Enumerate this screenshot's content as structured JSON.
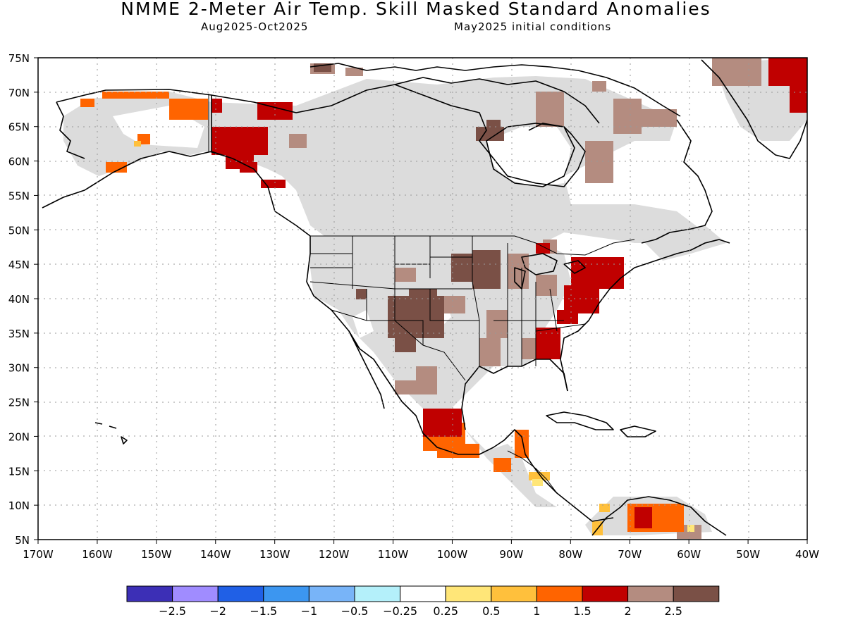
{
  "header": {
    "title": "NMME 2-Meter Air Temp. Skill Masked Standard Anomalies",
    "period": "Aug2025-Oct2025",
    "init": "May2025 initial conditions"
  },
  "lat_labels": [
    "75N",
    "70N",
    "65N",
    "60N",
    "55N",
    "50N",
    "45N",
    "40N",
    "35N",
    "30N",
    "25N",
    "20N",
    "15N",
    "10N",
    "5N"
  ],
  "lon_labels": [
    "170W",
    "160W",
    "150W",
    "140W",
    "130W",
    "120W",
    "110W",
    "100W",
    "90W",
    "80W",
    "70W",
    "60W",
    "50W",
    "40W"
  ],
  "legend": {
    "colors": [
      "#3c2fb6",
      "#a08cff",
      "#2060e6",
      "#3c96f0",
      "#78b4f8",
      "#b4f0fa",
      "#ffffff",
      "#ffe678",
      "#ffc03c",
      "#ff6400",
      "#c00000",
      "#b48c80",
      "#7a5046"
    ],
    "labels": [
      "-2.5",
      "-2",
      "-1.5",
      "-1",
      "-0.5",
      "-0.25",
      "0.25",
      "0.5",
      "1",
      "1.5",
      "2",
      "2.5"
    ]
  },
  "colors": {
    "gray": "#dcdcdc",
    "tan": "#b48c80",
    "brown": "#7a5046",
    "darkred": "#c00000",
    "orange": "#ff6400",
    "lightorange": "#ffc03c",
    "yellow": "#ffe678"
  }
}
